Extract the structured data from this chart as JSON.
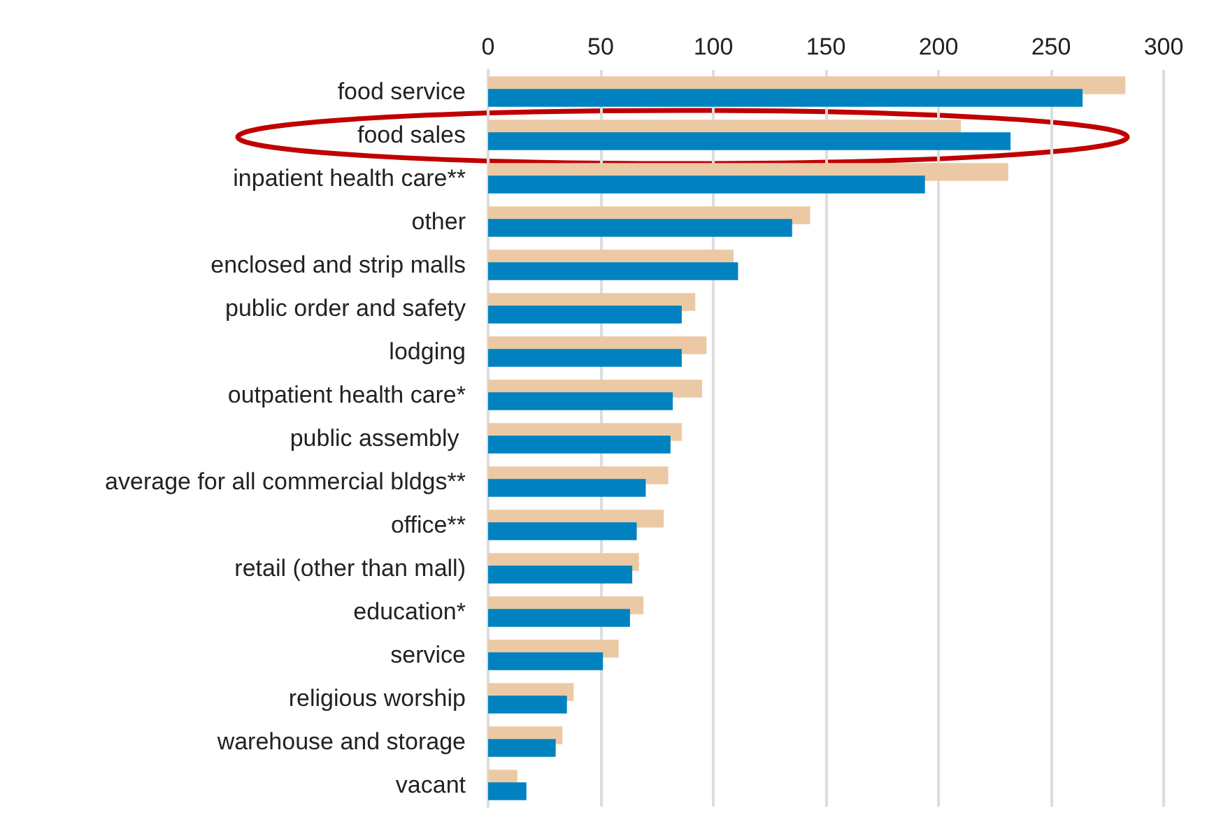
{
  "chart_data": {
    "type": "bar",
    "orientation": "horizontal",
    "categories": [
      "food service",
      "food sales",
      "inpatient health care**",
      "other",
      "enclosed and strip malls",
      "public order and safety",
      "lodging",
      "outpatient health care*",
      "public assembly ",
      "average for all commercial bldgs**",
      "office**",
      "retail (other than mall)",
      "education*",
      "service",
      "religious worship",
      "warehouse and storage",
      "vacant"
    ],
    "series": [
      {
        "color": "#ecc9a5",
        "values": [
          283,
          210,
          231,
          143,
          109,
          92,
          97,
          95,
          86,
          80,
          78,
          67,
          69,
          58,
          38,
          33,
          13
        ]
      },
      {
        "color": "#0082c0",
        "values": [
          264,
          232,
          194,
          135,
          111,
          86,
          86,
          82,
          81,
          70,
          66,
          64,
          63,
          51,
          35,
          30,
          17
        ]
      }
    ],
    "xlim": [
      0,
      300
    ],
    "xticks": [
      0,
      50,
      100,
      150,
      200,
      250,
      300
    ],
    "grid": "x"
  }
}
